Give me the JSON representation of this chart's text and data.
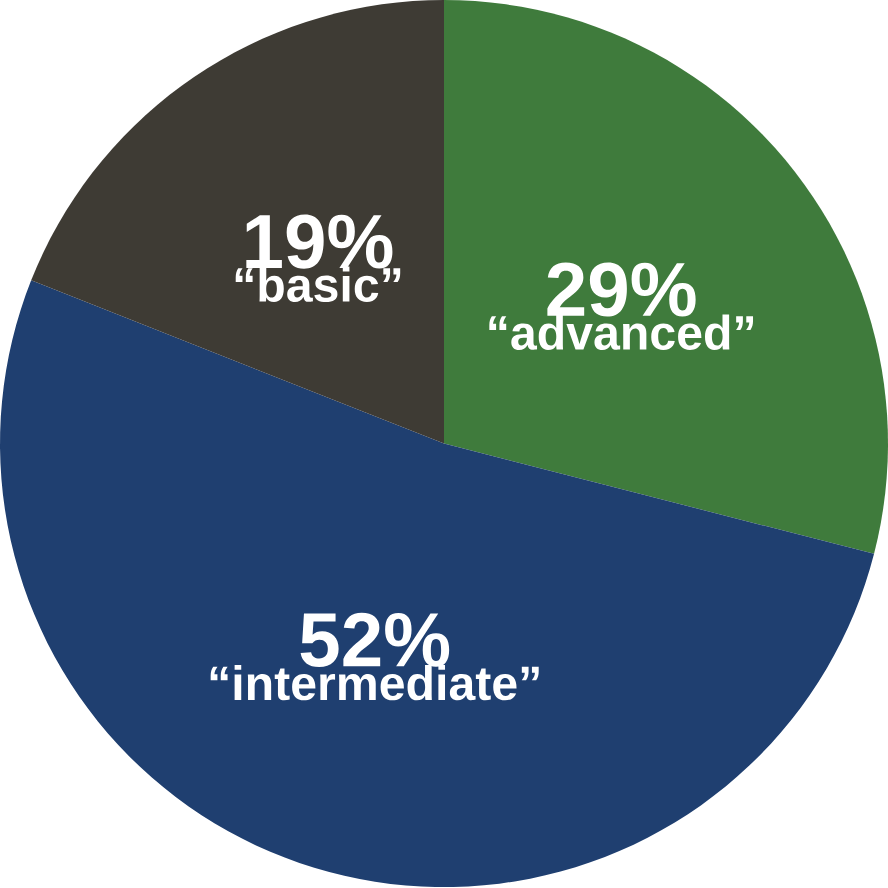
{
  "chart_data": {
    "type": "pie",
    "categories": [
      "“advanced”",
      "“intermediate”",
      "“basic”"
    ],
    "values": [
      29,
      52,
      19
    ],
    "value_labels": [
      "29%",
      "52%",
      "19%"
    ],
    "colors": [
      "#3f7b3c",
      "#1f3f70",
      "#3e3b34"
    ],
    "legend": false
  }
}
